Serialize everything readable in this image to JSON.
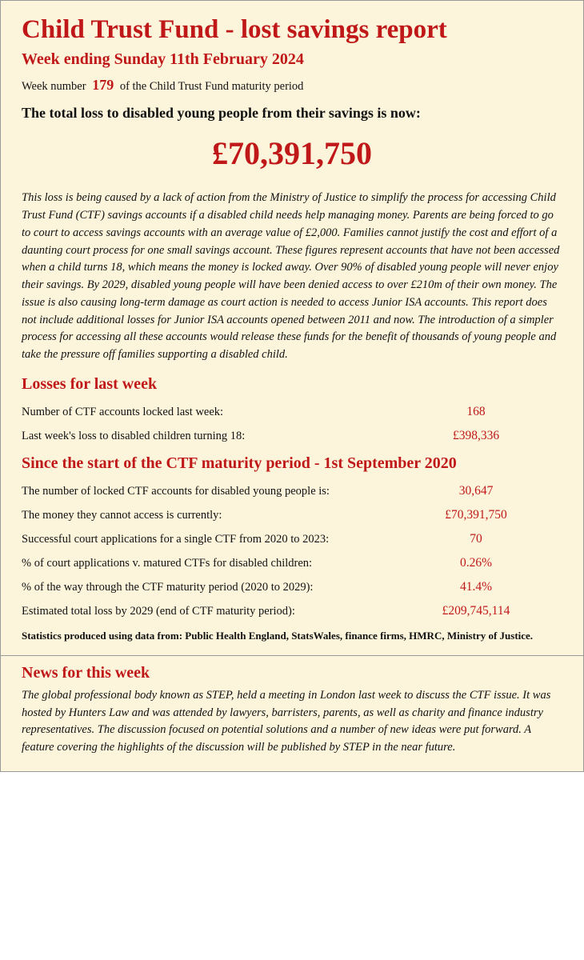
{
  "colors": {
    "accent": "#c01818",
    "background": "#fcf5db",
    "text": "#111111",
    "border": "#999999"
  },
  "header": {
    "title": "Child Trust Fund - lost savings report",
    "subtitle": "Week ending Sunday 11th February 2024",
    "week_prefix": "Week number",
    "week_number": "179",
    "week_suffix": "of the Child Trust Fund maturity period"
  },
  "total": {
    "label": "The total loss to disabled young people from their savings is now:",
    "amount": "£70,391,750"
  },
  "body_text": "This loss is being caused by a lack of action from the Ministry of Justice to simplify the process for accessing Child Trust Fund (CTF) savings accounts if a disabled child needs help managing money. Parents are being forced to go to court to access savings accounts with an average value of £2,000. Families cannot justify the cost and effort of a daunting court process for one small savings account. These figures represent accounts that have not been accessed when a child turns 18, which means the money is locked away. Over 90% of disabled young people will never enjoy their savings. By 2029, disabled young people will have been denied access to over £210m of their own money. The issue is also causing long-term damage as court action is needed to access Junior ISA accounts. This report does not include additional losses for Junior ISA accounts opened between 2011 and now. The introduction of a simpler process for accessing all these accounts would release these funds for the benefit of thousands of young people and take the pressure off families supporting a disabled child.",
  "last_week": {
    "heading": "Losses for last week",
    "rows": [
      {
        "label": "Number of CTF accounts locked last week:",
        "value": "168"
      },
      {
        "label": "Last week's loss to disabled children turning 18:",
        "value": "£398,336"
      }
    ]
  },
  "since_start": {
    "heading": "Since the start of the CTF maturity period - 1st September 2020",
    "rows": [
      {
        "label": "The number of locked CTF accounts for disabled young people is:",
        "value": "30,647"
      },
      {
        "label": "The money they cannot access is currently:",
        "value": "£70,391,750"
      },
      {
        "label": "Successful court applications for a single CTF from 2020 to 2023:",
        "value": "70"
      },
      {
        "label": "% of court applications v. matured CTFs for disabled children:",
        "value": "0.26%"
      },
      {
        "label": "% of the way through the CTF maturity period (2020 to 2029):",
        "value": "41.4%"
      },
      {
        "label": "Estimated total loss by 2029 (end of CTF maturity period):",
        "value": "£209,745,114"
      }
    ]
  },
  "footnote": "Statistics produced using data from: Public Health England, StatsWales, finance firms, HMRC, Ministry of Justice.",
  "news": {
    "heading": "News for this week",
    "body": "The global professional body known as STEP, held a meeting in London last week to discuss the CTF issue. It was hosted by Hunters Law and was attended by lawyers, barristers, parents, as well as charity and finance industry representatives. The discussion focused on potential solutions and a number of new ideas were put forward. A feature covering the highlights of the discussion will be published by STEP in the near future."
  }
}
